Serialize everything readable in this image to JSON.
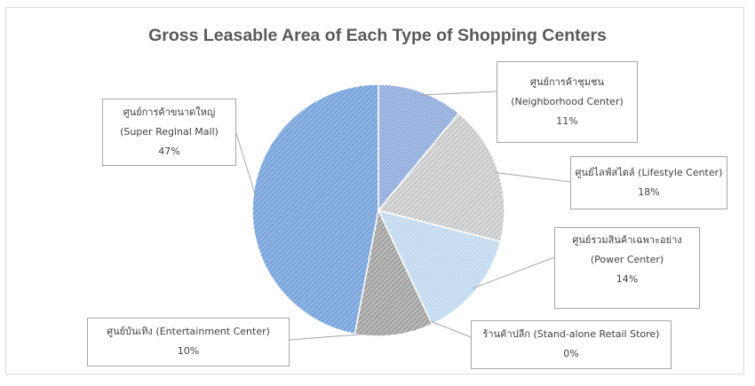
{
  "chart_data": {
    "type": "pie",
    "title": "Gross Leasable Area of Each Type of Shopping Centers",
    "slices": [
      {
        "name_th": "ศูนย์การค้าชุมชน",
        "name_en": "(Neighborhood Center)",
        "label": "11%",
        "value": 11,
        "color": "#8da9db",
        "pattern": "dots"
      },
      {
        "name_th": "ศูนย์ไลฟ์สไตล์ (Lifestyle Center)",
        "name_en": "",
        "label": "18%",
        "value": 18,
        "color": "#c9c9c9",
        "pattern": "diag"
      },
      {
        "name_th": "ศูนย์รวมสินค้าเฉพาะอย่าง",
        "name_en": "(Power Center)",
        "label": "14%",
        "value": 14,
        "color": "#bdd7ee",
        "pattern": "dots"
      },
      {
        "name_th": "ร้านค้าปลีก (Stand-alone Retail Store)",
        "name_en": "",
        "label": "0%",
        "value": 0,
        "color": "#a5a5a5",
        "pattern": "dots"
      },
      {
        "name_th": "ศูนย์บันเทิง (Entertainment Center)",
        "name_en": "",
        "label": "10%",
        "value": 10,
        "color": "#a6a6a6",
        "pattern": "diag"
      },
      {
        "name_th": "ศูนย์การค้าขนาดใหญ่",
        "name_en": "(Super Reginal Mall)",
        "label": "47%",
        "value": 47,
        "color": "#6f9bd2",
        "pattern": "diag"
      }
    ]
  }
}
